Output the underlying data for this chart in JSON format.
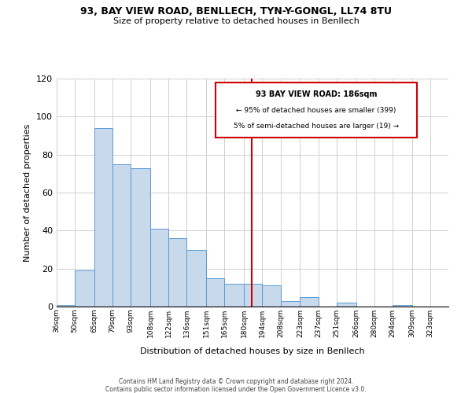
{
  "title": "93, BAY VIEW ROAD, BENLLECH, TYN-Y-GONGL, LL74 8TU",
  "subtitle": "Size of property relative to detached houses in Benllech",
  "xlabel": "Distribution of detached houses by size in Benllech",
  "ylabel": "Number of detached properties",
  "footer_line1": "Contains HM Land Registry data © Crown copyright and database right 2024.",
  "footer_line2": "Contains public sector information licensed under the Open Government Licence v3.0.",
  "bar_labels": [
    "36sqm",
    "50sqm",
    "65sqm",
    "79sqm",
    "93sqm",
    "108sqm",
    "122sqm",
    "136sqm",
    "151sqm",
    "165sqm",
    "180sqm",
    "194sqm",
    "208sqm",
    "223sqm",
    "237sqm",
    "251sqm",
    "266sqm",
    "280sqm",
    "294sqm",
    "309sqm",
    "323sqm"
  ],
  "bar_heights": [
    1,
    19,
    94,
    75,
    73,
    41,
    36,
    30,
    15,
    12,
    12,
    11,
    3,
    5,
    0,
    2,
    0,
    0,
    1,
    0,
    0
  ],
  "bar_color": "#c8d9eb",
  "bar_edge_color": "#5b9bd5",
  "reference_line_x": 186,
  "reference_line_label": "93 BAY VIEW ROAD: 186sqm",
  "annotation_line1": "← 95% of detached houses are smaller (399)",
  "annotation_line2": "5% of semi-detached houses are larger (19) →",
  "annotation_box_color": "#ffffff",
  "annotation_box_edge": "#cc0000",
  "ref_line_color": "#cc0000",
  "ylim": [
    0,
    120
  ],
  "bin_edges": [
    36,
    50,
    65,
    79,
    93,
    108,
    122,
    136,
    151,
    165,
    180,
    194,
    208,
    223,
    237,
    251,
    266,
    280,
    294,
    309,
    323,
    337
  ],
  "background_color": "#ffffff",
  "grid_color": "#d0d0d0"
}
